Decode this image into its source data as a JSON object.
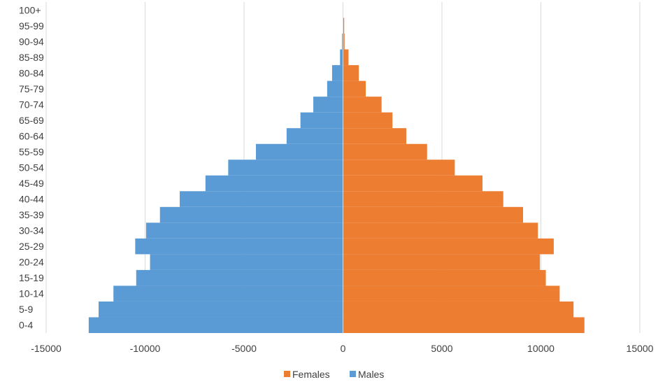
{
  "chart_data": {
    "type": "bar",
    "orientation": "horizontal",
    "stacked": true,
    "title": "",
    "xlabel": "",
    "ylabel": "",
    "categories": [
      "0-4",
      "5-9",
      "10-14",
      "15-19",
      "20-24",
      "25-29",
      "30-34",
      "35-39",
      "40-44",
      "45-49",
      "50-54",
      "55-59",
      "60-64",
      "65-69",
      "70-74",
      "75-79",
      "80-84",
      "85-89",
      "90-94",
      "95-99",
      "100+"
    ],
    "series": [
      {
        "name": "Females",
        "color": "#ED7D31",
        "values": [
          12200,
          11650,
          10950,
          10250,
          9950,
          10650,
          9850,
          9100,
          8100,
          7050,
          5650,
          4250,
          3200,
          2500,
          1950,
          1150,
          800,
          280,
          80,
          60,
          0
        ]
      },
      {
        "name": "Males",
        "color": "#5B9BD5",
        "values": [
          -12850,
          -12350,
          -11600,
          -10450,
          -9750,
          -10500,
          -9950,
          -9250,
          -8250,
          -6950,
          -5800,
          -4400,
          -2850,
          -2150,
          -1500,
          -800,
          -550,
          -150,
          -50,
          0,
          0
        ]
      }
    ],
    "xlim": [
      -15000,
      15000
    ],
    "xticks": [
      "-15000",
      "-10000",
      "-5000",
      "0",
      "5000",
      "10000",
      "15000"
    ],
    "grid": "vertical",
    "legend_position": "bottom"
  }
}
